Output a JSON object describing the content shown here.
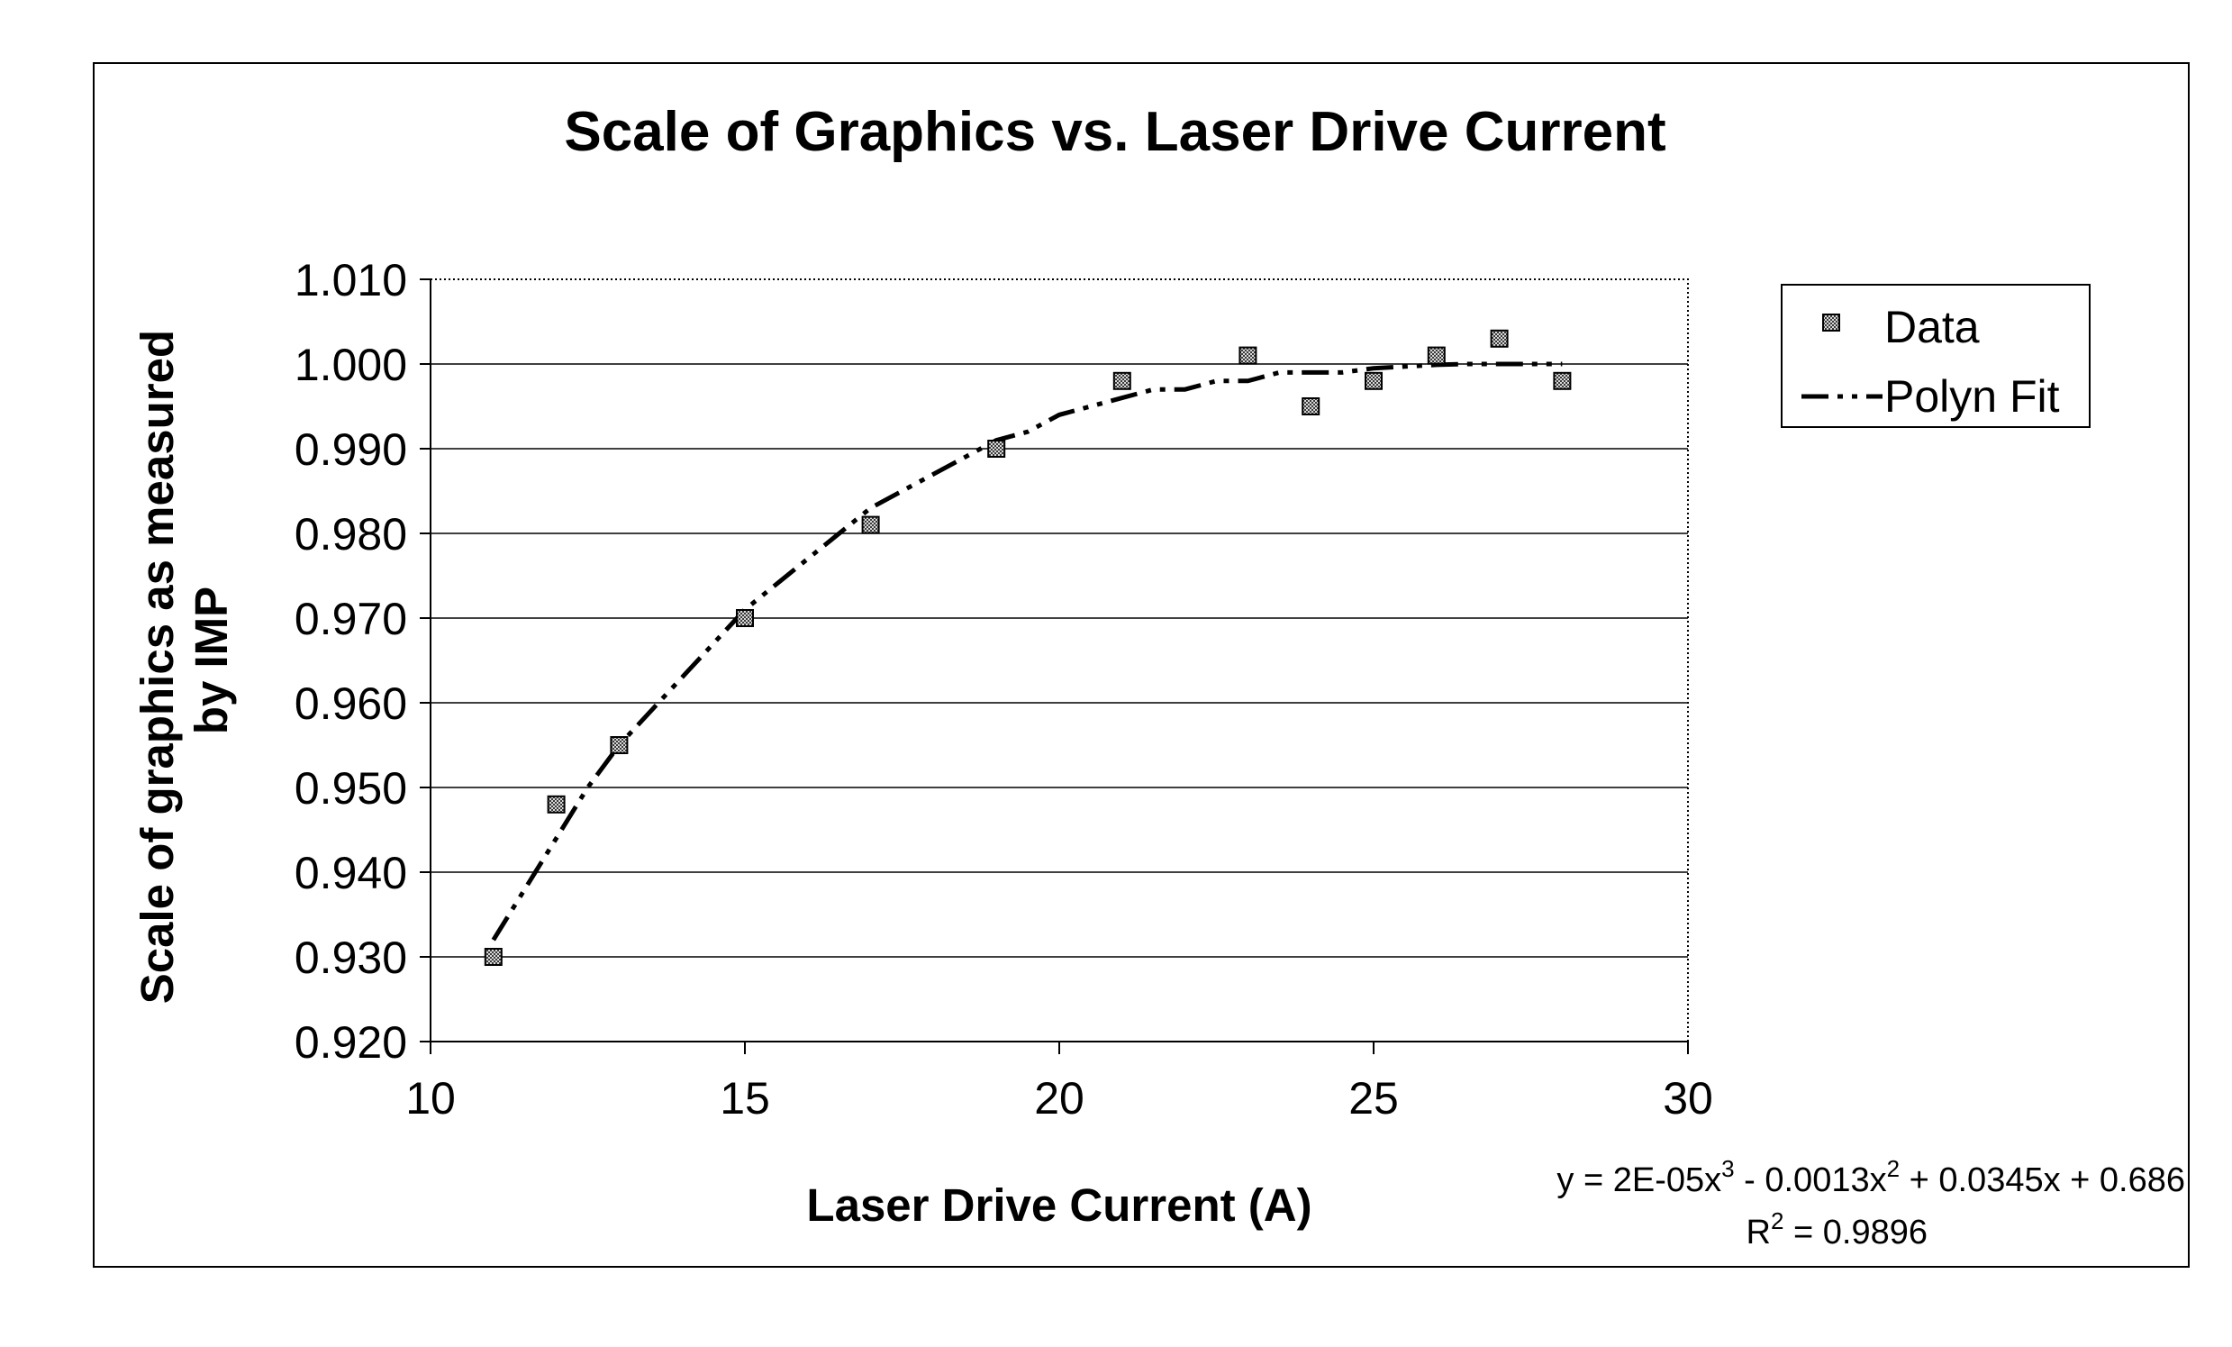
{
  "chart_data": {
    "type": "scatter",
    "title": "Scale of Graphics vs.  Laser Drive Current",
    "xlabel": "Laser Drive Current (A)",
    "ylabel_lines": [
      "Scale of graphics as measured",
      "by IMP"
    ],
    "xlim": [
      10,
      30
    ],
    "ylim": [
      0.92,
      1.01
    ],
    "x_ticks": [
      10,
      15,
      20,
      25,
      30
    ],
    "y_ticks": [
      0.92,
      0.93,
      0.94,
      0.95,
      0.96,
      0.97,
      0.98,
      0.99,
      1.0,
      1.01
    ],
    "y_tick_labels": [
      "0.920",
      "0.930",
      "0.940",
      "0.950",
      "0.960",
      "0.970",
      "0.980",
      "0.990",
      "1.000",
      "1.010"
    ],
    "grid": "horizontal",
    "legend_position": "right",
    "series": [
      {
        "name": "Data",
        "kind": "markers",
        "marker": "square",
        "points": [
          {
            "x": 11,
            "y": 0.93
          },
          {
            "x": 12,
            "y": 0.948
          },
          {
            "x": 13,
            "y": 0.955
          },
          {
            "x": 15,
            "y": 0.97
          },
          {
            "x": 17,
            "y": 0.981
          },
          {
            "x": 19,
            "y": 0.99
          },
          {
            "x": 21,
            "y": 0.998
          },
          {
            "x": 23,
            "y": 1.001
          },
          {
            "x": 24,
            "y": 0.995
          },
          {
            "x": 25,
            "y": 0.998
          },
          {
            "x": 26,
            "y": 1.001
          },
          {
            "x": 27,
            "y": 1.003
          },
          {
            "x": 28,
            "y": 0.998
          }
        ]
      },
      {
        "name": "Polyn Fit",
        "kind": "line",
        "line_style": "dash-dot-dot",
        "points": [
          {
            "x": 11.0,
            "y": 0.932
          },
          {
            "x": 11.5,
            "y": 0.938
          },
          {
            "x": 12.0,
            "y": 0.944
          },
          {
            "x": 12.5,
            "y": 0.95
          },
          {
            "x": 13.0,
            "y": 0.955
          },
          {
            "x": 13.5,
            "y": 0.959
          },
          {
            "x": 14.0,
            "y": 0.963
          },
          {
            "x": 14.5,
            "y": 0.967
          },
          {
            "x": 15.0,
            "y": 0.971
          },
          {
            "x": 15.5,
            "y": 0.974
          },
          {
            "x": 16.0,
            "y": 0.977
          },
          {
            "x": 16.5,
            "y": 0.98
          },
          {
            "x": 17.0,
            "y": 0.983
          },
          {
            "x": 17.5,
            "y": 0.985
          },
          {
            "x": 18.0,
            "y": 0.987
          },
          {
            "x": 18.5,
            "y": 0.989
          },
          {
            "x": 19.0,
            "y": 0.991
          },
          {
            "x": 19.5,
            "y": 0.992
          },
          {
            "x": 20.0,
            "y": 0.994
          },
          {
            "x": 20.5,
            "y": 0.995
          },
          {
            "x": 21.0,
            "y": 0.996
          },
          {
            "x": 21.5,
            "y": 0.997
          },
          {
            "x": 22.0,
            "y": 0.997
          },
          {
            "x": 22.5,
            "y": 0.998
          },
          {
            "x": 23.0,
            "y": 0.998
          },
          {
            "x": 23.5,
            "y": 0.999
          },
          {
            "x": 24.0,
            "y": 0.999
          },
          {
            "x": 24.5,
            "y": 0.999
          },
          {
            "x": 25.0,
            "y": 0.9995
          },
          {
            "x": 25.5,
            "y": 0.9997
          },
          {
            "x": 26.0,
            "y": 0.9999
          },
          {
            "x": 26.5,
            "y": 1.0
          },
          {
            "x": 27.0,
            "y": 1.0
          },
          {
            "x": 27.5,
            "y": 1.0
          },
          {
            "x": 28.0,
            "y": 1.0
          }
        ]
      }
    ],
    "annotation": {
      "equation": {
        "lead": "y = 2E-05x",
        "exp1": "3",
        "mid": " - 0.0013x",
        "exp2": "2",
        "tail": " + 0.0345x + 0.686"
      },
      "r_squared": {
        "lead": "R",
        "exp": "2",
        "tail": " = 0.9896"
      }
    }
  }
}
